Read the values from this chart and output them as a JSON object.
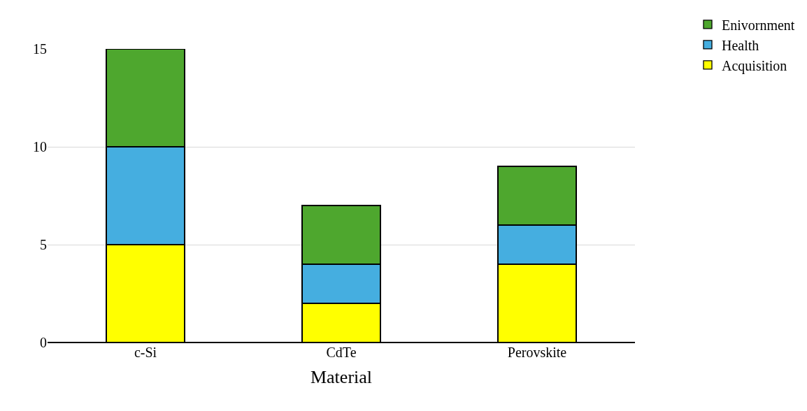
{
  "chart_data": {
    "type": "bar",
    "stacked": true,
    "xlabel": "Material",
    "categories": [
      "c-Si",
      "CdTe",
      "Perovskite"
    ],
    "series": [
      {
        "name": "Acquisition",
        "color": "#ffff00",
        "values": [
          5,
          2,
          4
        ]
      },
      {
        "name": "Health",
        "color": "#45aee0",
        "values": [
          5,
          2,
          2
        ]
      },
      {
        "name": "Enivornment",
        "color": "#4ea72e",
        "values": [
          5,
          3,
          3
        ]
      }
    ],
    "ylim": [
      0,
      15
    ],
    "yticks": [
      0,
      5,
      10,
      15
    ],
    "grid": "y",
    "legend": "top right"
  }
}
